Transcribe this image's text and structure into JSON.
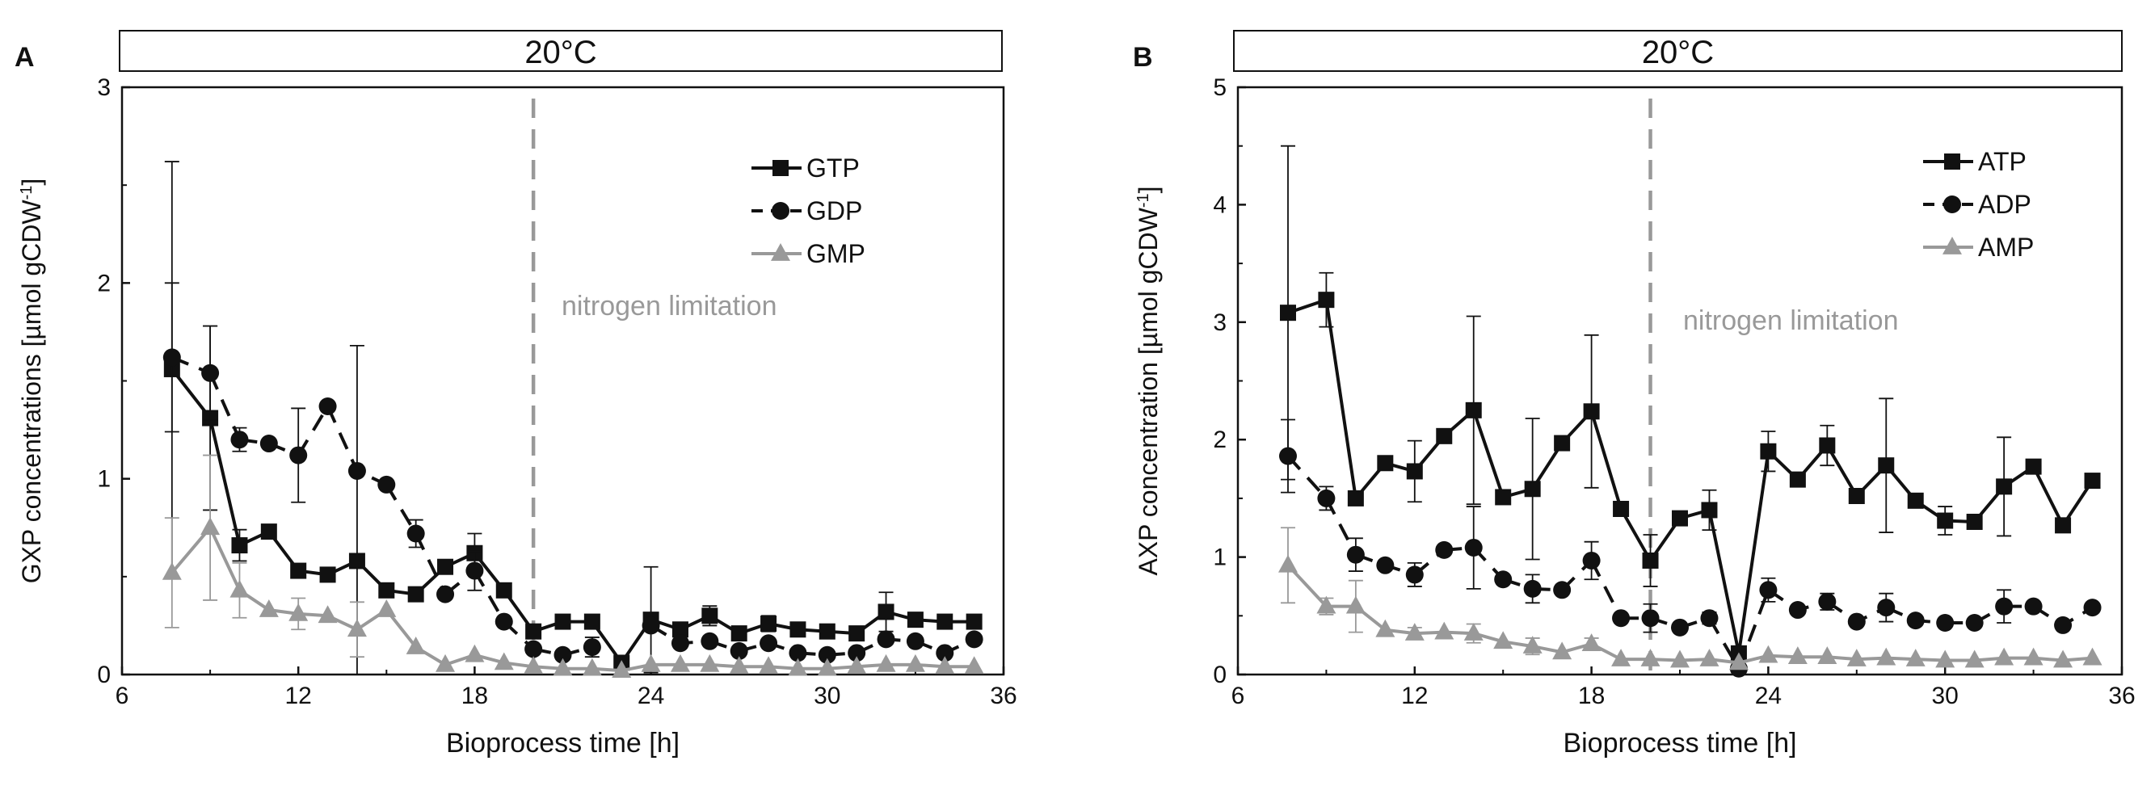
{
  "chart_data": [
    {
      "panel_label": "A",
      "type": "line",
      "header": "20°C",
      "title": "",
      "xlabel": "Bioprocess time [h]",
      "ylabel_main": "GXP concentrations [µmol gCDW",
      "ylabel_sup": "-1",
      "ylabel_close": "]",
      "xlim": [
        6,
        36
      ],
      "ylim": [
        0,
        3
      ],
      "xticks": [
        6,
        12,
        18,
        24,
        30,
        36
      ],
      "yticks": [
        0,
        1,
        2,
        3
      ],
      "vline": {
        "x": 20,
        "label": "nitrogen limitation"
      },
      "series": [
        {
          "name": "GTP",
          "marker": "square",
          "color": "#111111",
          "dash": "solid",
          "x": [
            7.7,
            9,
            10,
            11,
            12,
            13,
            14,
            15,
            16,
            17,
            18,
            19,
            20,
            21,
            22,
            23,
            24,
            25,
            26,
            27,
            28,
            29,
            30,
            31,
            32,
            33,
            34,
            35
          ],
          "y": [
            1.56,
            1.31,
            0.66,
            0.73,
            0.53,
            0.51,
            0.58,
            0.43,
            0.41,
            0.55,
            0.62,
            0.43,
            0.22,
            0.27,
            0.27,
            0.06,
            0.28,
            0.23,
            0.3,
            0.21,
            0.26,
            0.23,
            0.22,
            0.21,
            0.32,
            0.28,
            0.27,
            0.27
          ],
          "err": [
            1.06,
            0.47,
            0.08,
            0,
            0,
            0,
            1.1,
            0,
            0,
            0,
            0.1,
            0,
            0,
            0,
            0,
            0,
            0.27,
            0.03,
            0.05,
            0,
            0.04,
            0,
            0,
            0,
            0.1,
            0,
            0,
            0
          ],
          "segments": [
            [
              0,
              27
            ]
          ]
        },
        {
          "name": "GDP",
          "marker": "circle",
          "color": "#111111",
          "dash": "dash",
          "x": [
            7.7,
            9,
            10,
            11,
            12,
            13,
            14,
            15,
            16,
            17,
            18,
            19,
            20,
            21,
            22,
            24,
            25,
            26,
            27,
            28,
            29,
            30,
            31,
            32,
            33,
            34,
            35
          ],
          "y": [
            1.62,
            1.54,
            1.2,
            1.18,
            1.12,
            1.37,
            1.04,
            0.97,
            0.72,
            0.41,
            0.53,
            0.27,
            0.13,
            0.1,
            0.14,
            0.25,
            0.16,
            0.17,
            0.12,
            0.16,
            0.11,
            0.1,
            0.11,
            0.18,
            0.17,
            0.11,
            0.18
          ],
          "err": [
            0.38,
            0.24,
            0.06,
            0,
            0.24,
            0,
            0,
            0,
            0.07,
            0,
            0.1,
            0,
            0,
            0,
            0.05,
            0,
            0,
            0,
            0,
            0,
            0,
            0,
            0,
            0,
            0,
            0,
            0
          ],
          "segments": [
            [
              0,
              1
            ],
            [
              1,
              2
            ],
            [
              2,
              4
            ],
            [
              4,
              5
            ],
            [
              5,
              7
            ],
            [
              7,
              8
            ],
            [
              8,
              9
            ],
            [
              9,
              10
            ],
            [
              10,
              11
            ],
            [
              11,
              12
            ],
            [
              12,
              14
            ],
            [
              15,
              17
            ],
            [
              17,
              18
            ],
            [
              18,
              20
            ],
            [
              20,
              21
            ],
            [
              21,
              22
            ],
            [
              22,
              24
            ],
            [
              24,
              26
            ]
          ]
        },
        {
          "name": "GMP",
          "marker": "triangle",
          "color": "#999999",
          "dash": "solid",
          "x": [
            7.7,
            9,
            10,
            11,
            12,
            13,
            14,
            15,
            16,
            17,
            18,
            19,
            20,
            21,
            22,
            23,
            24,
            25,
            26,
            27,
            28,
            29,
            30,
            31,
            32,
            33,
            34,
            35
          ],
          "y": [
            0.52,
            0.75,
            0.43,
            0.33,
            0.31,
            0.3,
            0.23,
            0.33,
            0.14,
            0.05,
            0.1,
            0.06,
            0.04,
            0.03,
            0.03,
            0.02,
            0.05,
            0.05,
            0.05,
            0.04,
            0.04,
            0.03,
            0.03,
            0.04,
            0.05,
            0.05,
            0.04,
            0.04
          ],
          "err": [
            0.28,
            0.37,
            0.14,
            0,
            0.08,
            0,
            0.14,
            0,
            0,
            0,
            0,
            0,
            0,
            0,
            0,
            0,
            0,
            0,
            0,
            0,
            0,
            0,
            0,
            0,
            0,
            0,
            0,
            0
          ],
          "segments": [
            [
              0,
              27
            ]
          ]
        }
      ]
    },
    {
      "panel_label": "B",
      "type": "line",
      "header": "20°C",
      "title": "",
      "xlabel": "Bioprocess time [h]",
      "ylabel_main": "AXP concentration [µmol gCDW",
      "ylabel_sup": "-1",
      "ylabel_close": "]",
      "xlim": [
        6,
        36
      ],
      "ylim": [
        0,
        5
      ],
      "xticks": [
        6,
        12,
        18,
        24,
        30,
        36
      ],
      "yticks": [
        0,
        1,
        2,
        3,
        4,
        5
      ],
      "vline": {
        "x": 20,
        "label": "nitrogen limitation"
      },
      "series": [
        {
          "name": "ATP",
          "marker": "square",
          "color": "#111111",
          "dash": "solid",
          "x": [
            7.7,
            9,
            10,
            11,
            12,
            13,
            14,
            15,
            16,
            17,
            18,
            19,
            20,
            21,
            22,
            23,
            24,
            25,
            26,
            27,
            28,
            29,
            30,
            31,
            32,
            33,
            34,
            35
          ],
          "y": [
            3.08,
            3.19,
            1.5,
            1.8,
            1.73,
            2.03,
            2.25,
            1.51,
            1.58,
            1.97,
            2.24,
            1.41,
            0.97,
            1.33,
            1.4,
            0.18,
            1.9,
            1.66,
            1.95,
            1.52,
            1.78,
            1.48,
            1.31,
            1.3,
            1.6,
            1.77,
            1.27,
            1.65
          ],
          "err": [
            1.42,
            0.23,
            0,
            0,
            0.26,
            0,
            0.8,
            0,
            0.6,
            0,
            0.65,
            0,
            0.22,
            0,
            0.17,
            0,
            0.17,
            0,
            0.17,
            0,
            0.57,
            0,
            0.12,
            0,
            0.42,
            0,
            0,
            0
          ],
          "segments": [
            [
              0,
              27
            ]
          ]
        },
        {
          "name": "ADP",
          "marker": "circle",
          "color": "#111111",
          "dash": "dash",
          "x": [
            7.7,
            9,
            10,
            11,
            12,
            13,
            14,
            15,
            16,
            17,
            18,
            19,
            20,
            21,
            22,
            23,
            24,
            25,
            26,
            27,
            28,
            29,
            30,
            31,
            32,
            33,
            34,
            35
          ],
          "y": [
            1.86,
            1.5,
            1.02,
            0.93,
            0.85,
            1.06,
            1.08,
            0.81,
            0.73,
            0.72,
            0.97,
            0.48,
            0.48,
            0.4,
            0.48,
            0.05,
            0.72,
            0.55,
            0.62,
            0.45,
            0.57,
            0.46,
            0.44,
            0.44,
            0.58,
            0.58,
            0.42,
            0.57
          ],
          "err": [
            0.31,
            0.1,
            0.14,
            0,
            0.1,
            0,
            0.35,
            0,
            0.12,
            0,
            0.16,
            0,
            0.12,
            0,
            0.05,
            0,
            0.1,
            0,
            0.07,
            0,
            0.12,
            0,
            0,
            0,
            0.14,
            0,
            0,
            0
          ],
          "segments": [
            [
              0,
              1
            ],
            [
              1,
              2
            ],
            [
              2,
              4
            ],
            [
              4,
              5
            ],
            [
              5,
              7
            ],
            [
              7,
              8
            ],
            [
              8,
              10
            ],
            [
              10,
              11
            ],
            [
              11,
              13
            ],
            [
              13,
              14
            ],
            [
              14,
              15
            ],
            [
              15,
              16
            ],
            [
              16,
              18
            ],
            [
              18,
              20
            ],
            [
              20,
              22
            ],
            [
              22,
              24
            ],
            [
              24,
              25
            ],
            [
              25,
              27
            ]
          ]
        },
        {
          "name": "AMP",
          "marker": "triangle",
          "color": "#999999",
          "dash": "solid",
          "x": [
            7.7,
            9,
            10,
            11,
            12,
            13,
            14,
            15,
            16,
            17,
            18,
            19,
            20,
            21,
            22,
            23,
            24,
            25,
            26,
            27,
            28,
            29,
            30,
            31,
            32,
            33,
            34,
            35
          ],
          "y": [
            0.93,
            0.58,
            0.58,
            0.38,
            0.35,
            0.36,
            0.35,
            0.28,
            0.24,
            0.19,
            0.26,
            0.13,
            0.13,
            0.12,
            0.13,
            0.1,
            0.16,
            0.15,
            0.15,
            0.13,
            0.14,
            0.13,
            0.12,
            0.12,
            0.14,
            0.14,
            0.12,
            0.14
          ],
          "err": [
            0.32,
            0.07,
            0.22,
            0,
            0.05,
            0,
            0.08,
            0,
            0.07,
            0,
            0.05,
            0,
            0,
            0,
            0,
            0,
            0,
            0,
            0,
            0,
            0,
            0,
            0,
            0,
            0,
            0,
            0,
            0
          ],
          "segments": [
            [
              0,
              27
            ]
          ]
        }
      ]
    }
  ]
}
